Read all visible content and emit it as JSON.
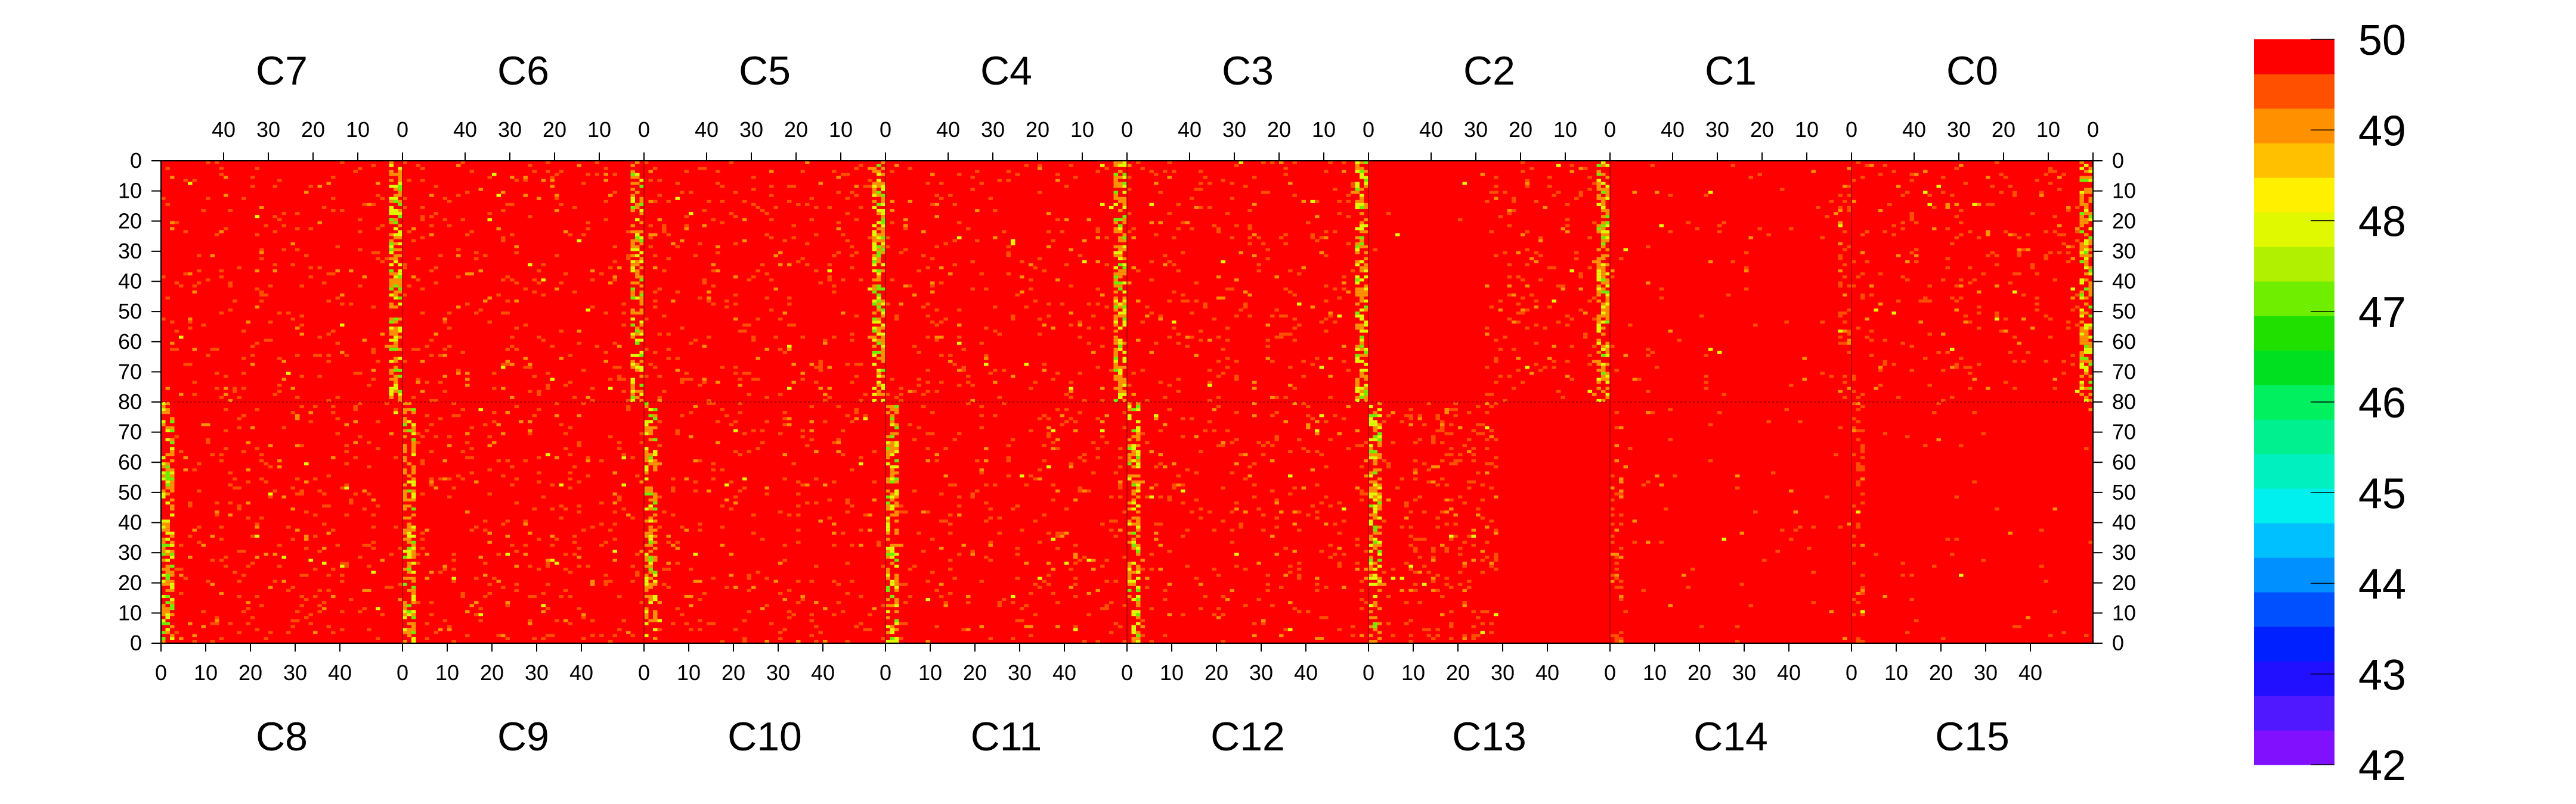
{
  "chart_data": {
    "type": "heatmap",
    "top_chips": [
      "C7",
      "C6",
      "C5",
      "C4",
      "C3",
      "C2",
      "C1",
      "C0"
    ],
    "bottom_chips": [
      "C8",
      "C9",
      "C10",
      "C11",
      "C12",
      "C13",
      "C14",
      "C15"
    ],
    "chip_columns": 54,
    "rows_per_half": 80,
    "top_x_ticks": [
      "40",
      "30",
      "20",
      "10",
      "0"
    ],
    "bottom_x_ticks": [
      "0",
      "10",
      "20",
      "30",
      "40"
    ],
    "y_ticks_top_half": [
      "0",
      "10",
      "20",
      "30",
      "40",
      "50",
      "60",
      "70",
      "80"
    ],
    "y_ticks_bottom_half": [
      "70",
      "60",
      "50",
      "40",
      "30",
      "20",
      "10",
      "0"
    ],
    "z_range": [
      42,
      50
    ],
    "colorbar_labels": [
      "50",
      "49",
      "48",
      "47",
      "46",
      "45",
      "44",
      "43",
      "42"
    ],
    "palette": [
      "#8010ff",
      "#5018ff",
      "#2010ff",
      "#0020ff",
      "#0050ff",
      "#0090ff",
      "#00c0ff",
      "#00f0f0",
      "#00f0c0",
      "#00f090",
      "#00f060",
      "#00e020",
      "#20e000",
      "#70ee00",
      "#b0f000",
      "#e0f800",
      "#fff000",
      "#ffc000",
      "#ff9000",
      "#ff5000",
      "#ff0000"
    ],
    "dominant_value": 50,
    "high_variation_columns": [
      "chip edge columns (~column 0-2)",
      "C13 columns ~10-27"
    ],
    "grid": false
  }
}
